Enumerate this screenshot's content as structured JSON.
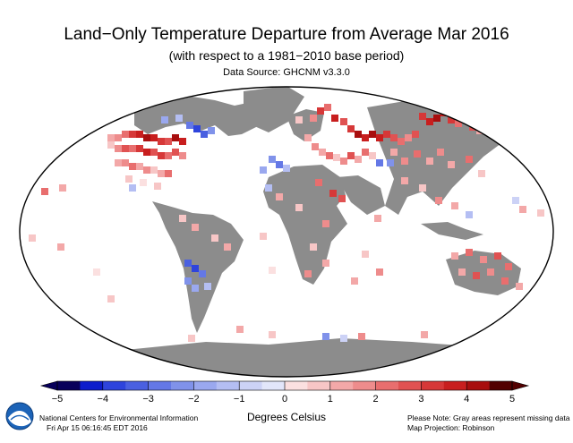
{
  "header": {
    "title": "Land−Only Temperature Departure from Average Mar 2016",
    "subtitle": "(with respect to a 1981−2010 base period)",
    "source": "Data Source: GHCNM v3.3.0"
  },
  "legend": {
    "units": "Degrees Celsius",
    "ticks": [
      "−5",
      "−4",
      "−3",
      "−2",
      "−1",
      "0",
      "1",
      "2",
      "3",
      "4",
      "5"
    ],
    "colors": [
      "#08005a",
      "#0d1dcc",
      "#2e44dc",
      "#4a60e0",
      "#6478e6",
      "#8092ea",
      "#9aa8ef",
      "#b4bef3",
      "#ccd2f6",
      "#e2e6fa",
      "#fbe0e0",
      "#f7c6c6",
      "#f3a8a8",
      "#ee8c8c",
      "#e86e6e",
      "#e05252",
      "#d63838",
      "#c81e1e",
      "#a80e0e",
      "#520000"
    ]
  },
  "footer": {
    "organization": "National Centers for Environmental Information",
    "timestamp": "Fri Apr 15 06:16:45 EDT 2016",
    "note": "Please Note: Gray areas represent missing data",
    "projection": "Map Projection: Robinson"
  },
  "colors": {
    "missing": "#8c8c8c",
    "ocean": "#ffffff",
    "border": "#000000"
  }
}
